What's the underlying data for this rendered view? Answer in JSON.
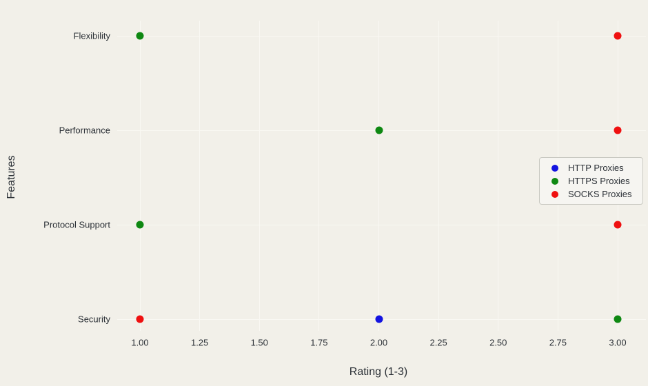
{
  "chart_data": {
    "type": "scatter",
    "title": "",
    "xlabel": "Rating (1-3)",
    "ylabel": "Features",
    "categories": [
      "Flexibility",
      "Performance",
      "Protocol Support",
      "Security"
    ],
    "x_ticks": [
      "1.00",
      "1.25",
      "1.50",
      "1.75",
      "2.00",
      "2.25",
      "2.50",
      "2.75",
      "3.00"
    ],
    "xlim": [
      0.9,
      3.12
    ],
    "grid": true,
    "legend": {
      "position": "center-right"
    },
    "series": [
      {
        "name": "HTTP Proxies",
        "color": "#1313e0",
        "values": [
          null,
          null,
          null,
          2
        ]
      },
      {
        "name": "HTTPS Proxies",
        "color": "#0e8812",
        "values": [
          1,
          2,
          1,
          3
        ]
      },
      {
        "name": "SOCKS Proxies",
        "color": "#ef1010",
        "values": [
          3,
          3,
          3,
          1
        ]
      }
    ]
  },
  "colors": {
    "background": "#f2f0e9",
    "grid": "#f9f8f3",
    "text": "#2b3036",
    "legend_background": "#f6f5f1",
    "legend_border": "#c9c9c2"
  }
}
